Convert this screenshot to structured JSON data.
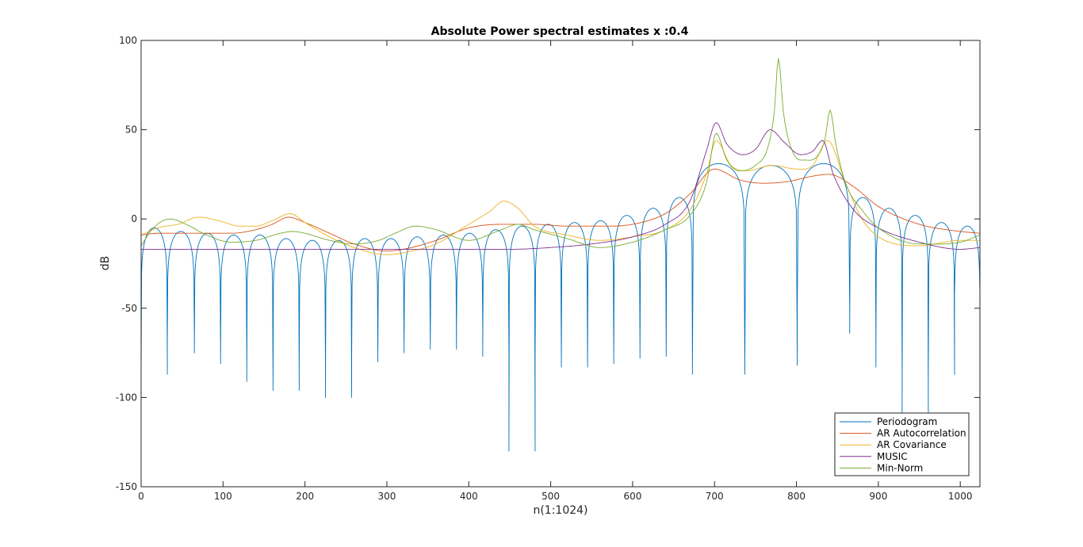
{
  "chart_data": {
    "type": "line",
    "title": "Absolute Power spectral estimates x :0.4",
    "xlabel": "n(1:1024)",
    "ylabel": "dB",
    "xlim": [
      0,
      1024
    ],
    "ylim": [
      -150,
      100
    ],
    "xticks": [
      0,
      100,
      200,
      300,
      400,
      500,
      600,
      700,
      800,
      900,
      1000
    ],
    "yticks": [
      -150,
      -100,
      -50,
      0,
      50,
      100
    ],
    "grid": false,
    "legend_position": "bottom-right",
    "colors": {
      "periodogram": "#0072BD",
      "ar_autocorrelation": "#D95319",
      "ar_covariance": "#EDB120",
      "music": "#7E2F8E",
      "min_norm": "#77AC30"
    },
    "series": [
      {
        "name": "Periodogram",
        "color": "#0072BD",
        "kind": "lobes",
        "lobes": [
          {
            "from": 0,
            "to": 32,
            "peak": -5,
            "null": -87
          },
          {
            "from": 32,
            "to": 65,
            "peak": -7,
            "null": -67
          },
          {
            "from": 65,
            "to": 97,
            "peak": -8,
            "null": -75
          },
          {
            "from": 97,
            "to": 129,
            "peak": -9,
            "null": -81
          },
          {
            "from": 129,
            "to": 161,
            "peak": -9,
            "null": -91
          },
          {
            "from": 161,
            "to": 193,
            "peak": -11,
            "null": -96
          },
          {
            "from": 193,
            "to": 225,
            "peak": -12,
            "null": -80
          },
          {
            "from": 225,
            "to": 257,
            "peak": -12,
            "null": -100
          },
          {
            "from": 257,
            "to": 289,
            "peak": -11,
            "null": -80
          },
          {
            "from": 289,
            "to": 321,
            "peak": -11,
            "null": -75
          },
          {
            "from": 321,
            "to": 353,
            "peak": -10,
            "null": -70
          },
          {
            "from": 353,
            "to": 385,
            "peak": -9,
            "null": -73
          },
          {
            "from": 385,
            "to": 417,
            "peak": -8,
            "null": -60
          },
          {
            "from": 417,
            "to": 449,
            "peak": -6,
            "null": -77
          },
          {
            "from": 449,
            "to": 481,
            "peak": -4,
            "null": -130
          },
          {
            "from": 481,
            "to": 513,
            "peak": -3,
            "null": -80
          },
          {
            "from": 513,
            "to": 545,
            "peak": -2,
            "null": -83
          },
          {
            "from": 545,
            "to": 577,
            "peak": -1,
            "null": -81
          },
          {
            "from": 577,
            "to": 609,
            "peak": 2,
            "null": -78
          },
          {
            "from": 609,
            "to": 641,
            "peak": 6,
            "null": -77
          },
          {
            "from": 641,
            "to": 673,
            "peak": 12,
            "null": -75
          },
          {
            "from": 673,
            "to": 737,
            "peak": 31,
            "null": -87
          },
          {
            "from": 737,
            "to": 801,
            "peak": 30,
            "null": -82
          },
          {
            "from": 801,
            "to": 865,
            "peak": 31,
            "null": -50
          },
          {
            "from": 865,
            "to": 897,
            "peak": 12,
            "null": -64
          },
          {
            "from": 897,
            "to": 929,
            "peak": 6,
            "null": -83
          },
          {
            "from": 929,
            "to": 961,
            "peak": 2,
            "null": -110
          },
          {
            "from": 961,
            "to": 993,
            "peak": -2,
            "null": -87
          },
          {
            "from": 993,
            "to": 1024,
            "peak": -4,
            "null": -42
          }
        ]
      },
      {
        "name": "AR Autocorrelation",
        "color": "#D95319",
        "kind": "curve",
        "x": [
          0,
          20,
          50,
          80,
          110,
          140,
          160,
          180,
          200,
          230,
          260,
          300,
          330,
          360,
          400,
          440,
          480,
          520,
          560,
          600,
          640,
          670,
          700,
          730,
          760,
          790,
          820,
          840,
          870,
          900,
          950,
          1000,
          1024
        ],
        "y": [
          -9,
          -8,
          -8,
          -8,
          -8,
          -6,
          -3,
          1,
          -2,
          -8,
          -14,
          -18,
          -16,
          -12,
          -5,
          -3,
          -3,
          -4,
          -4,
          -3,
          3,
          14,
          28,
          22,
          20,
          21,
          24,
          25,
          18,
          7,
          -3,
          -7,
          -8
        ]
      },
      {
        "name": "AR Covariance",
        "color": "#EDB120",
        "kind": "curve",
        "x": [
          0,
          20,
          45,
          70,
          95,
          120,
          140,
          160,
          182,
          200,
          230,
          260,
          300,
          330,
          360,
          400,
          425,
          443,
          460,
          480,
          520,
          560,
          600,
          640,
          670,
          690,
          702,
          720,
          740,
          770,
          800,
          820,
          838,
          860,
          880,
          900,
          950,
          1000,
          1024
        ],
        "y": [
          -9,
          -5,
          -3,
          1,
          -1,
          -4,
          -4,
          -1,
          3,
          -2,
          -10,
          -16,
          -20,
          -18,
          -14,
          -3,
          4,
          10,
          6,
          -4,
          -9,
          -12,
          -10,
          -6,
          5,
          25,
          44,
          30,
          27,
          30,
          28,
          30,
          44,
          20,
          0,
          -10,
          -15,
          -12,
          -12
        ]
      },
      {
        "name": "MUSIC",
        "color": "#7E2F8E",
        "kind": "curve",
        "x": [
          0,
          50,
          100,
          150,
          200,
          250,
          300,
          350,
          400,
          450,
          500,
          550,
          600,
          640,
          670,
          690,
          702,
          715,
          735,
          750,
          768,
          785,
          805,
          820,
          832,
          845,
          870,
          900,
          950,
          1000,
          1024
        ],
        "y": [
          -17,
          -17,
          -17,
          -17,
          -17,
          -17,
          -17,
          -17,
          -17,
          -17,
          -16,
          -14,
          -10,
          -3,
          10,
          38,
          54,
          42,
          36,
          39,
          50,
          43,
          36,
          38,
          44,
          25,
          5,
          -5,
          -13,
          -17,
          -16
        ]
      },
      {
        "name": "Min-Norm",
        "color": "#77AC30",
        "kind": "curve",
        "x": [
          0,
          15,
          35,
          55,
          80,
          110,
          140,
          170,
          185,
          200,
          230,
          260,
          290,
          310,
          335,
          360,
          400,
          440,
          460,
          480,
          520,
          560,
          600,
          640,
          670,
          690,
          702,
          715,
          730,
          750,
          765,
          773,
          778,
          784,
          795,
          810,
          825,
          835,
          841,
          848,
          860,
          880,
          900,
          950,
          1000,
          1024
        ],
        "y": [
          -15,
          -5,
          0,
          -3,
          -9,
          -13,
          -12,
          -8,
          -7,
          -8,
          -12,
          -14,
          -12,
          -8,
          -4,
          -6,
          -12,
          -6,
          -3,
          -6,
          -11,
          -16,
          -13,
          -6,
          2,
          20,
          48,
          33,
          27,
          30,
          40,
          60,
          90,
          60,
          38,
          33,
          35,
          45,
          61,
          42,
          20,
          5,
          -5,
          -14,
          -13,
          -9
        ]
      }
    ]
  }
}
